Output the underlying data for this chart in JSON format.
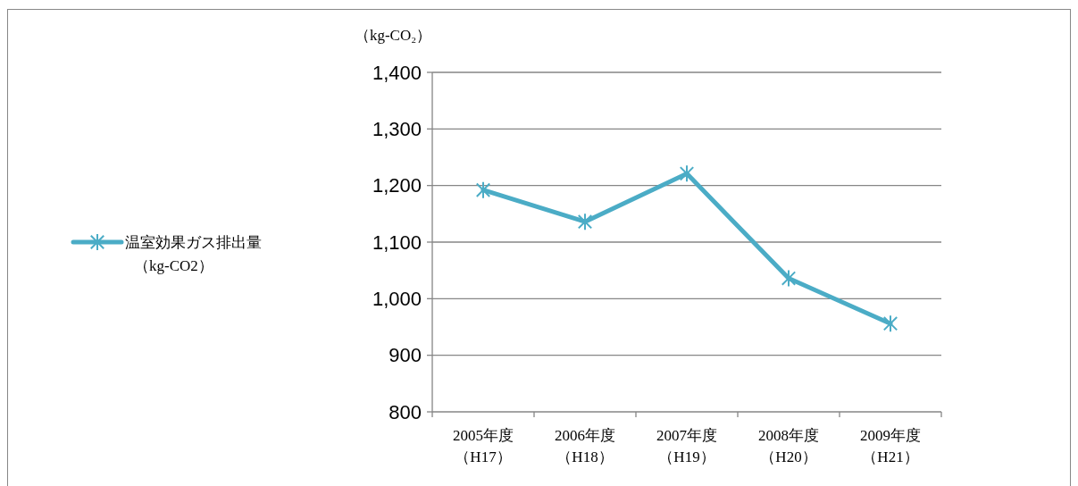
{
  "chart_data": {
    "type": "line",
    "ylabel": "（kg-CO₂）",
    "categories": [
      "2005年度（H17）",
      "2006年度（H18）",
      "2007年度（H19）",
      "2008年度（H20）",
      "2009年度（H21）"
    ],
    "series": [
      {
        "name": "温室効果ガス排出量（kg-CO2）",
        "color": "#4bacc6",
        "values": [
          1192,
          1136,
          1221,
          1036,
          956
        ]
      }
    ],
    "ylim": [
      800,
      1400
    ],
    "yticks": [
      {
        "value": 800,
        "label": "800"
      },
      {
        "value": 900,
        "label": "900"
      },
      {
        "value": 1000,
        "label": "1,000"
      },
      {
        "value": 1100,
        "label": "1,100"
      },
      {
        "value": 1200,
        "label": "1,200"
      },
      {
        "value": 1300,
        "label": "1,300"
      },
      {
        "value": 1400,
        "label": "1,400"
      }
    ],
    "grid": "y",
    "legend": "left",
    "marker": "cross",
    "line_style": "solid"
  }
}
